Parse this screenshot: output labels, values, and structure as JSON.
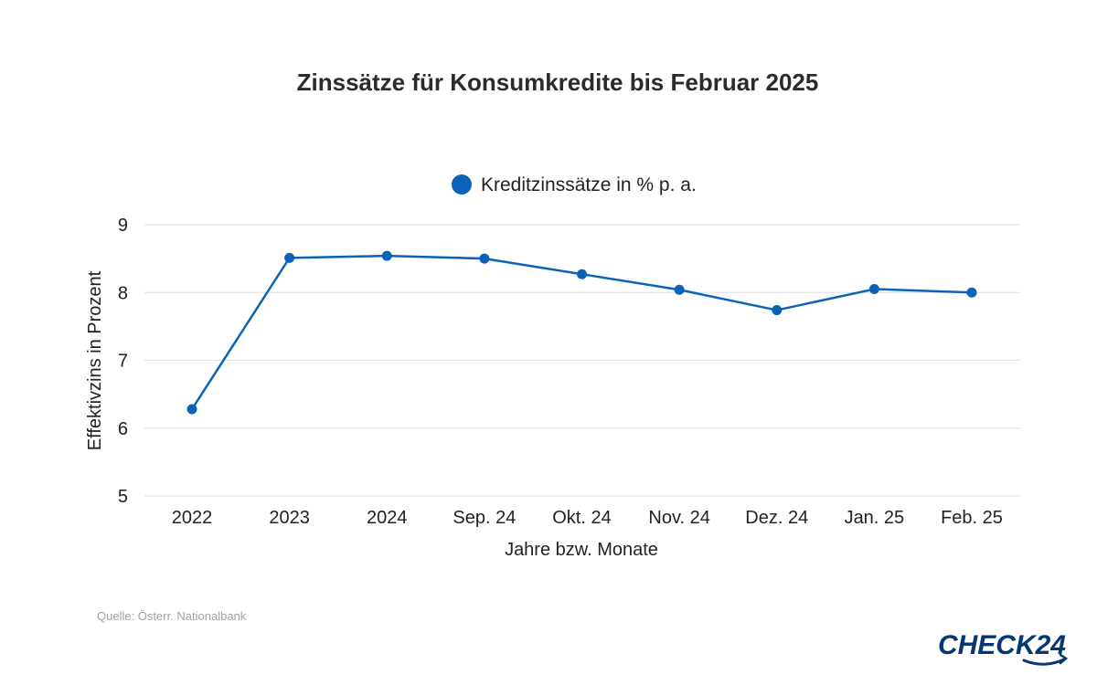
{
  "chart_data": {
    "type": "line",
    "title": "Zinssätze für Konsumkredite bis Februar 2025",
    "xlabel": "Jahre bzw. Monate",
    "ylabel": "Effektivzins in Prozent",
    "categories": [
      "2022",
      "2023",
      "2024",
      "Sep. 24",
      "Okt. 24",
      "Nov. 24",
      "Dez. 24",
      "Jan. 25",
      "Feb. 25"
    ],
    "series": [
      {
        "name": "Kreditzinssätze in % p. a.",
        "color": "#0a63b8",
        "values": [
          6.28,
          8.51,
          8.54,
          8.5,
          8.27,
          8.04,
          7.74,
          8.05,
          8.0
        ]
      }
    ],
    "ylim": [
      5,
      9
    ],
    "yticks": [
      "5",
      "6",
      "7",
      "8",
      "9"
    ],
    "grid": true,
    "legend_position": "top-center"
  },
  "source": "Quelle: Österr. Nationalbank",
  "logo": {
    "text": "CHECK24",
    "color": "#063773"
  }
}
